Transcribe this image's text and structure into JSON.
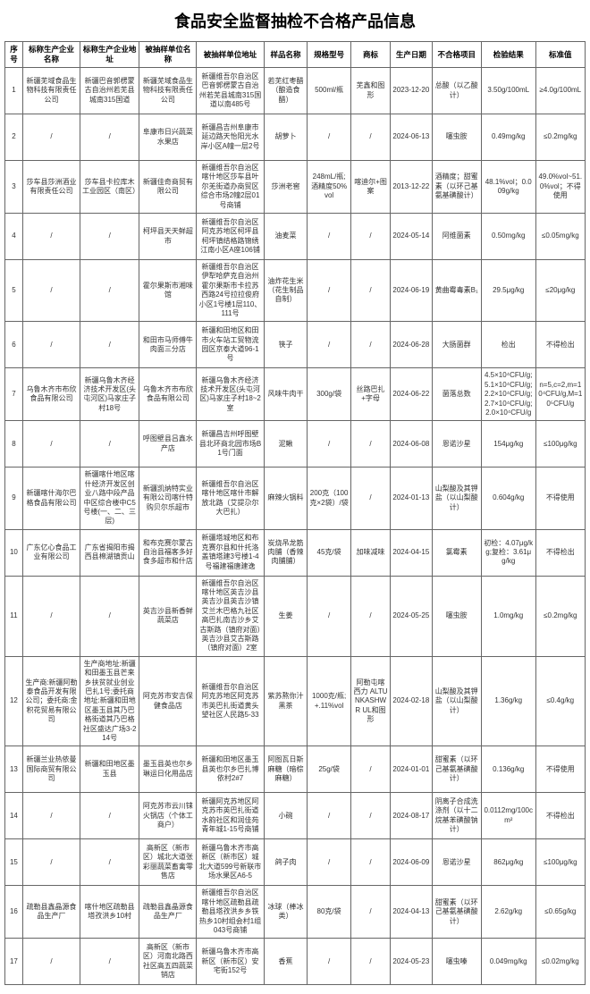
{
  "title": "食品安全监督抽检不合格产品信息",
  "headers": {
    "seq": "序号",
    "company": "标称生产企业名称",
    "companyAddr": "标称生产企业地址",
    "sampleUnit": "被抽样单位名称",
    "sampleAddr": "被抽样单位地址",
    "sampleName": "样品名称",
    "spec": "规格型号",
    "brand": "商标",
    "prodDate": "生产日期",
    "failItem": "不合格项目",
    "testResult": "检验结果",
    "standard": "标准值"
  },
  "rows": [
    {
      "seq": "1",
      "company": "新疆芜域食品生物科技有限责任公司",
      "companyAddr": "新疆巴音郭楞蒙古自治州若芜县城南315国道",
      "sampleUnit": "新疆芜域食品生物科技有限责任公司",
      "sampleAddr": "新疆维吾尔自治区巴音郭楞蒙古自治州若芜县城南315国道以南485号",
      "sampleName": "若芜红枣醋（酿造食醋）",
      "spec": "500ml/瓶",
      "brand": "芜鑫和图形",
      "prodDate": "2023-12-20",
      "failItem": "总酸（以乙酸计）",
      "testResult": "3.50g/100mL",
      "standard": "≥4.0g/100mL"
    },
    {
      "seq": "2",
      "company": "/",
      "companyAddr": "/",
      "sampleUnit": "阜康市日兴蔬菜水果店",
      "sampleAddr": "新疆昌吉州阜康市延边路天怡阳光水岸小区A幢一层2号",
      "sampleName": "胡萝卜",
      "spec": "/",
      "brand": "/",
      "prodDate": "2024-06-13",
      "failItem": "噻虫胺",
      "testResult": "0.49mg/kg",
      "standard": "≤0.2mg/kg"
    },
    {
      "seq": "3",
      "company": "莎车县莎洲酒业有限责任公司",
      "companyAddr": "莎车县卡拉库木工业园区（南区）",
      "sampleUnit": "新疆佳奇商贸有限公司",
      "sampleAddr": "新疆维吾尔自治区喀什地区莎车县叶尔羌街道办商贸区综合市场2幢2层01号商铺",
      "sampleName": "莎洲老窖",
      "spec": "248mL/瓶;酒精度50%vol",
      "brand": "喀迪尔+图案",
      "prodDate": "2013-12-22",
      "failItem": "酒精度；甜蜜素（以环己基氨基磺酸计）",
      "testResult": "48.1%vol；0.009g/kg",
      "standard": "49.0%vol~51.0%vol；不得使用"
    },
    {
      "seq": "4",
      "company": "/",
      "companyAddr": "/",
      "sampleUnit": "柯坪县天天鲜超市",
      "sampleAddr": "新疆维吾尔自治区阿克苏地区柯坪县柯坪镇结格路锦绣江南小区A座106铺",
      "sampleName": "油麦菜",
      "spec": "/",
      "brand": "/",
      "prodDate": "2024-05-14",
      "failItem": "阿维菌素",
      "testResult": "0.50mg/kg",
      "standard": "≤0.05mg/kg"
    },
    {
      "seq": "5",
      "company": "/",
      "companyAddr": "/",
      "sampleUnit": "霍尔果斯市湘味馆",
      "sampleAddr": "新疆维吾尔自治区伊犁哈萨克自治州霍尔果斯市卡拉苏西路24号拉拉俊府小区1号楼1层110、111号",
      "sampleName": "油炸花生米（花生制品自制）",
      "spec": "/",
      "brand": "/",
      "prodDate": "2024-06-19",
      "failItem": "黄曲霉毒素B₁",
      "testResult": "29.5μg/kg",
      "standard": "≤20μg/kg"
    },
    {
      "seq": "6",
      "company": "/",
      "companyAddr": "/",
      "sampleUnit": "和田市马师傅牛肉面三分店",
      "sampleAddr": "新疆和田地区和田市火车站工贸物流园区京泰大道96-1号",
      "sampleName": "筷子",
      "spec": "/",
      "brand": "/",
      "prodDate": "2024-06-28",
      "failItem": "大肠菌群",
      "testResult": "检出",
      "standard": "不得检出"
    },
    {
      "seq": "7",
      "company": "乌鲁木齐市布欣食品有限公司",
      "companyAddr": "新疆乌鲁木齐经济技术开发区(头屯河区)马家庄子村18号",
      "sampleUnit": "乌鲁木齐市布欣食品有限公司",
      "sampleAddr": "新疆乌鲁木齐经济技术开发区(头屯河区)马家庄子村18~2室",
      "sampleName": "风味牛肉干",
      "spec": "300g/袋",
      "brand": "丝路巴扎+字母",
      "prodDate": "2024-06-22",
      "failItem": "菌落总数",
      "testResult": "4.5×10⁴CFU/g;5.1×10⁴CFU/g;2.2×10⁴CFU/g;2.7×10⁴CFU/g;2.0×10⁴CFU/g",
      "standard": "n=5,c=2,m=10⁴CFU/g,M=10⁵CFU/g"
    },
    {
      "seq": "8",
      "company": "/",
      "companyAddr": "/",
      "sampleUnit": "呼图壁县吕鑫水产店",
      "sampleAddr": "新疆昌吉州呼图壁县北环商北园市场B1号门面",
      "sampleName": "泥鳅",
      "spec": "/",
      "brand": "/",
      "prodDate": "2024-06-08",
      "failItem": "恩诺沙星",
      "testResult": "154μg/kg",
      "standard": "≤100μg/kg"
    },
    {
      "seq": "9",
      "company": "新疆喀什海尔巴格食品有限公司",
      "companyAddr": "新疆喀什地区喀什经济开发区创业八路中段产品中区综合楼中C5号楼(一、二、三层)",
      "sampleUnit": "新疆凯纳特实业有限公司喀什特购贝尔乐超市",
      "sampleAddr": "新疆维吾尔自治区喀什地区喀什市解放北路（艾提尕尔大巴扎）",
      "sampleName": "麻辣火锅料",
      "spec": "200克（100克×2袋）/袋",
      "brand": "/",
      "prodDate": "2024-01-13",
      "failItem": "山梨酸及其钾盐（以山梨酸计）",
      "testResult": "0.604g/kg",
      "standard": "不得使用"
    },
    {
      "seq": "10",
      "company": "广东亿心食品工业有限公司",
      "companyAddr": "广东省揭阳市揭西县棉湖镇贡山",
      "sampleUnit": "和布克赛尔蒙古自治县福客多好食多超市和什店",
      "sampleAddr": "新疆塔城地区和布克赛尔县和什托洛盖镇塔建3号楼1-4号福建福唐建逸",
      "sampleName": "炭烧吊龙筋肉脯（香辣肉脯脯）",
      "spec": "45克/袋",
      "brand": "加味减味",
      "prodDate": "2024-04-15",
      "failItem": "氯霉素",
      "testResult": "初检：4.07μg/kg;复检：3.61μg/kg",
      "standard": "不得检出"
    },
    {
      "seq": "11",
      "company": "/",
      "companyAddr": "/",
      "sampleUnit": "英吉沙县新香鲜蔬菜店",
      "sampleAddr": "新疆维吾尔自治区喀什地区英吉沙县英吉沙县英吉沙镇艾兰木巴格九社区高巴扎南吉沙乡艾古斯路（镇府对面）英吉沙县艾古斯路（镇府对面）2室",
      "sampleName": "生姜",
      "spec": "/",
      "brand": "/",
      "prodDate": "2024-05-25",
      "failItem": "噻虫胺",
      "testResult": "1.0mg/kg",
      "standard": "≤0.2mg/kg"
    },
    {
      "seq": "12",
      "company": "生产商:新疆阿勒泰食品开发有限公司；委托商:金积花贸易有限公司",
      "companyAddr": "生产商地址:新疆和田墨玉县芒来乡扶贫就业创业巴扎1号;委托商地址:新疆和田地区墨玉县其乃巴格街道其乃巴格社区盛达广场3-214号",
      "sampleUnit": "阿克苏市安吉保健食品店",
      "sampleAddr": "新疆维吾尔自治区阿克苏地区阿克苏市英巴扎街道黄头望社区人民路5-33",
      "sampleName": "紫苏熬你汁黑茶",
      "spec": "1000克/瓶;+.11%vol",
      "brand": "阿勒屯喀西力 ALTUNKASHWR UL和图形",
      "prodDate": "2024-02-18",
      "failItem": "山梨酸及其钾盐（以山梨酸计）",
      "testResult": "1.36g/kg",
      "standard": "≤0.4g/kg"
    },
    {
      "seq": "13",
      "company": "新疆兰业热依曼国际商贸有限公司",
      "companyAddr": "新疆和田地区墨玉县",
      "sampleUnit": "墨玉县英也尔乡琳运日化用品店",
      "sampleAddr": "新疆和田地区墨玉县英也尔乡巴扎博依村2#7",
      "sampleName": "阿图瓦日斯麻糖（暗棕麻糖）",
      "spec": "25g/袋",
      "brand": "/",
      "prodDate": "2024-01-01",
      "failItem": "甜蜜素（以环己基氨基磺酸计）",
      "testResult": "0.136g/kg",
      "standard": "不得使用"
    },
    {
      "seq": "14",
      "company": "/",
      "companyAddr": "/",
      "sampleUnit": "阿克苏市云川铼火锅店（个体工商户）",
      "sampleAddr": "新疆阿克苏地区阿克苏市英巴扎街道水韵社区和润佳苑青年城1-15号商铺",
      "sampleName": "小碗",
      "spec": "/",
      "brand": "/",
      "prodDate": "2024-08-17",
      "failItem": "阴离子合成洗涤剂（以十二烷基苯磺酸钠计）",
      "testResult": "0.0112mg/100cm²",
      "standard": "不得检出"
    },
    {
      "seq": "15",
      "company": "/",
      "companyAddr": "/",
      "sampleUnit": "高新区（新市区）城北大道张彩丽蔬菜畜禽零售店",
      "sampleAddr": "新疆乌鲁木齐市高新区（新市区）城北大道599号新联市场水果区A6-5",
      "sampleName": "鸽子肉",
      "spec": "/",
      "brand": "/",
      "prodDate": "2024-06-09",
      "failItem": "恩诺沙星",
      "testResult": "862μg/kg",
      "standard": "≤100μg/kg"
    },
    {
      "seq": "16",
      "company": "疏勒县鑫晶源食品生产厂",
      "companyAddr": "喀什地区疏勒县塔孜洪乡10村",
      "sampleUnit": "疏勒县鑫晶源食品生产厂",
      "sampleAddr": "新疆维吾尔自治区喀什地区疏勒县疏勒县塔孜洪乡乡铁热乡10村组会村1组043号商铺",
      "sampleName": "冰球（棒冰类）",
      "spec": "80克/袋",
      "brand": "/",
      "prodDate": "2024-04-13",
      "failItem": "甜蜜素（以环己基氨基磺酸计）",
      "testResult": "2.62g/kg",
      "standard": "≤0.65g/kg"
    },
    {
      "seq": "17",
      "company": "/",
      "companyAddr": "/",
      "sampleUnit": "高新区（新市区）河南北路西社区高五四蔬菜销店",
      "sampleAddr": "新疆乌鲁木齐市高新区（新市区）安宅街152号",
      "sampleName": "香蕉",
      "spec": "/",
      "brand": "/",
      "prodDate": "2024-05-23",
      "failItem": "噻虫嗪",
      "testResult": "0.049mg/kg",
      "standard": "≤0.02mg/kg"
    }
  ]
}
